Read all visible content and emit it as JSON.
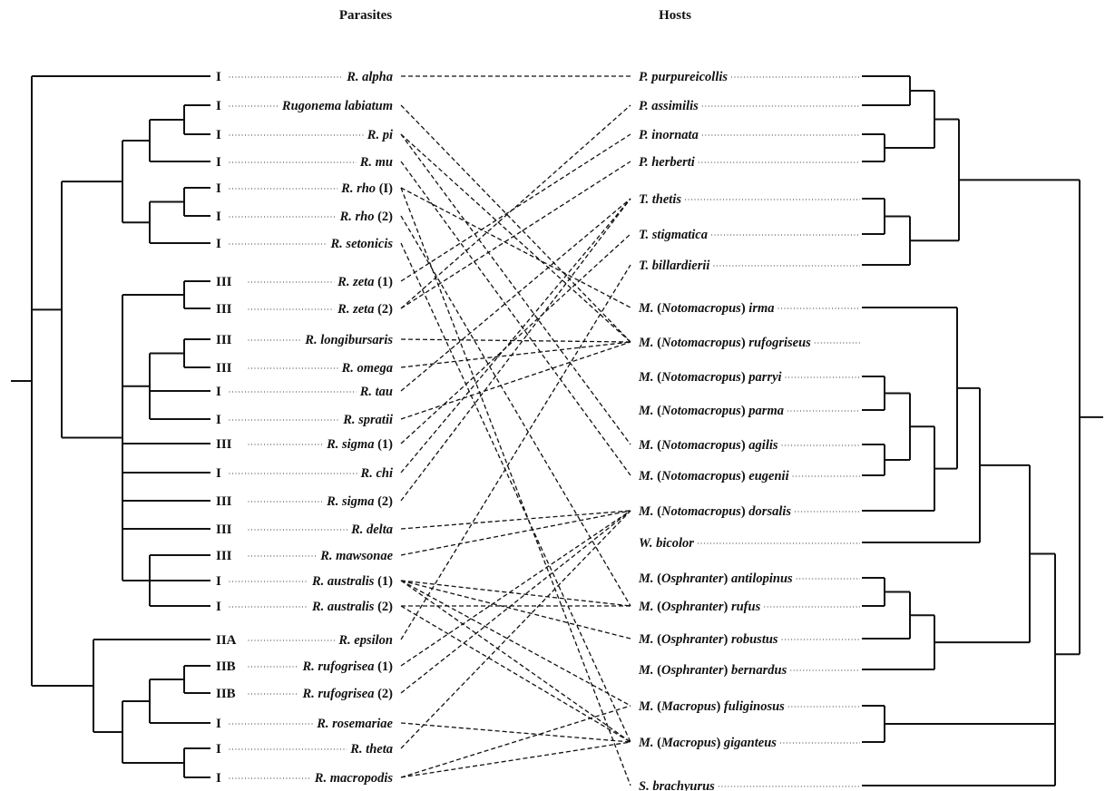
{
  "headers": {
    "parasites": "Parasites",
    "hosts": "Hosts"
  },
  "parasites": [
    {
      "clade": "I",
      "name": "R. alpha"
    },
    {
      "clade": "I",
      "name": "Rugonema labiatum"
    },
    {
      "clade": "I",
      "name": "R. pi"
    },
    {
      "clade": "I",
      "name": "R. mu"
    },
    {
      "clade": "I",
      "name": "R. rho",
      "suffix": "(I)"
    },
    {
      "clade": "I",
      "name": "R. rho",
      "suffix": "(2)"
    },
    {
      "clade": "I",
      "name": "R. setonicis"
    },
    {
      "clade": "III",
      "name": "R. zeta",
      "suffix": "(1)"
    },
    {
      "clade": "III",
      "name": "R. zeta",
      "suffix": "(2)"
    },
    {
      "clade": "III",
      "name": "R. longibursaris"
    },
    {
      "clade": "III",
      "name": "R. omega"
    },
    {
      "clade": "I",
      "name": "R. tau"
    },
    {
      "clade": "I",
      "name": "R. spratii"
    },
    {
      "clade": "III",
      "name": "R. sigma",
      "suffix": "(1)"
    },
    {
      "clade": "I",
      "name": "R. chi"
    },
    {
      "clade": "III",
      "name": "R. sigma",
      "suffix": "(2)"
    },
    {
      "clade": "III",
      "name": "R. delta"
    },
    {
      "clade": "III",
      "name": "R. mawsonae"
    },
    {
      "clade": "I",
      "name": "R. australis",
      "suffix": "(1)"
    },
    {
      "clade": "I",
      "name": "R. australis",
      "suffix": "(2)"
    },
    {
      "clade": "IIA",
      "name": "R. epsilon"
    },
    {
      "clade": "IIB",
      "name": "R. rufogrisea",
      "suffix": "(1)"
    },
    {
      "clade": "IIB",
      "name": "R. rufogrisea",
      "suffix": "(2)"
    },
    {
      "clade": "I",
      "name": "R. rosemariae"
    },
    {
      "clade": "I",
      "name": "R. theta"
    },
    {
      "clade": "I",
      "name": "R. macropodis"
    }
  ],
  "hosts": [
    {
      "italic": "P. purpureicollis"
    },
    {
      "italic": "P. assimilis"
    },
    {
      "italic": "P. inornata"
    },
    {
      "italic": "P. herberti"
    },
    {
      "italic": "T. thetis"
    },
    {
      "italic": "T. stigmatica"
    },
    {
      "italic": "T. billardierii"
    },
    {
      "italic": "M.",
      "sub": "Notomacropus",
      "species": "irma"
    },
    {
      "italic": "M.",
      "sub": "Notomacropus",
      "species": "rufogriseus"
    },
    {
      "italic": "M.",
      "sub": "Notomacropus",
      "species": "parryi"
    },
    {
      "italic": "M.",
      "sub": "Notomacropus",
      "species": "parma"
    },
    {
      "italic": "M.",
      "sub": "Notomacropus",
      "species": "agilis"
    },
    {
      "italic": "M.",
      "sub": "Notomacropus",
      "species": "eugenii"
    },
    {
      "italic": "M.",
      "sub": "Notomacropus",
      "species": "dorsalis"
    },
    {
      "italic": "W. bicolor"
    },
    {
      "italic": "M.",
      "sub": "Osphranter",
      "species": "antilopinus"
    },
    {
      "italic": "M.",
      "sub": "Osphranter",
      "species": "rufus"
    },
    {
      "italic": "M.",
      "sub": "Osphranter",
      "species": "robustus"
    },
    {
      "italic": "M.",
      "sub": "Osphranter",
      "species": "bernardus"
    },
    {
      "italic": "M.",
      "sub": "Macropus",
      "species": "fuliginosus"
    },
    {
      "italic": "M.",
      "sub": "Macropus",
      "species": "giganteus"
    },
    {
      "italic": "S. brachyurus"
    }
  ],
  "associations": [
    [
      0,
      0
    ],
    [
      1,
      8
    ],
    [
      2,
      8
    ],
    [
      2,
      11
    ],
    [
      3,
      12
    ],
    [
      4,
      7
    ],
    [
      4,
      21
    ],
    [
      5,
      16
    ],
    [
      6,
      20
    ],
    [
      7,
      2
    ],
    [
      8,
      1
    ],
    [
      8,
      3
    ],
    [
      9,
      8
    ],
    [
      10,
      8
    ],
    [
      11,
      4
    ],
    [
      12,
      8
    ],
    [
      13,
      5
    ],
    [
      14,
      4
    ],
    [
      15,
      4
    ],
    [
      16,
      13
    ],
    [
      17,
      13
    ],
    [
      18,
      16
    ],
    [
      18,
      17
    ],
    [
      18,
      19
    ],
    [
      18,
      20
    ],
    [
      19,
      16
    ],
    [
      19,
      20
    ],
    [
      20,
      6
    ],
    [
      21,
      13
    ],
    [
      22,
      13
    ],
    [
      23,
      20
    ],
    [
      24,
      13
    ],
    [
      25,
      19
    ],
    [
      25,
      20
    ]
  ]
}
